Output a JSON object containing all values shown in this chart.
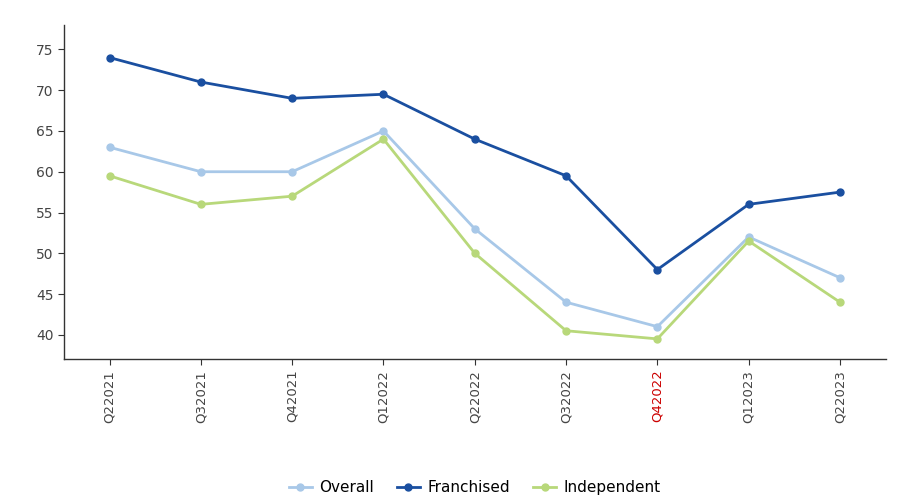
{
  "x_labels": [
    "Q22021",
    "Q32021",
    "Q42021",
    "Q12022",
    "Q22022",
    "Q32022",
    "Q42022",
    "Q12023",
    "Q22023"
  ],
  "overall": [
    63,
    60,
    60,
    65,
    53,
    44,
    41,
    52,
    47
  ],
  "franchised": [
    74,
    71,
    69,
    69.5,
    64,
    59.5,
    48,
    56,
    57.5
  ],
  "independent": [
    59.5,
    56,
    57,
    64,
    50,
    40.5,
    39.5,
    51.5,
    44
  ],
  "overall_color": "#a8c8e8",
  "franchised_color": "#1a4fa0",
  "independent_color": "#b8d87a",
  "linewidth": 2.0,
  "markersize": 5,
  "ylim": [
    37,
    78
  ],
  "yticks": [
    40,
    45,
    50,
    55,
    60,
    65,
    70,
    75
  ],
  "legend_labels": [
    "Overall",
    "Franchised",
    "Independent"
  ],
  "background_color": "#ffffff",
  "q4_2022_label_color": "#cc0000",
  "q4_2022_index": 6
}
